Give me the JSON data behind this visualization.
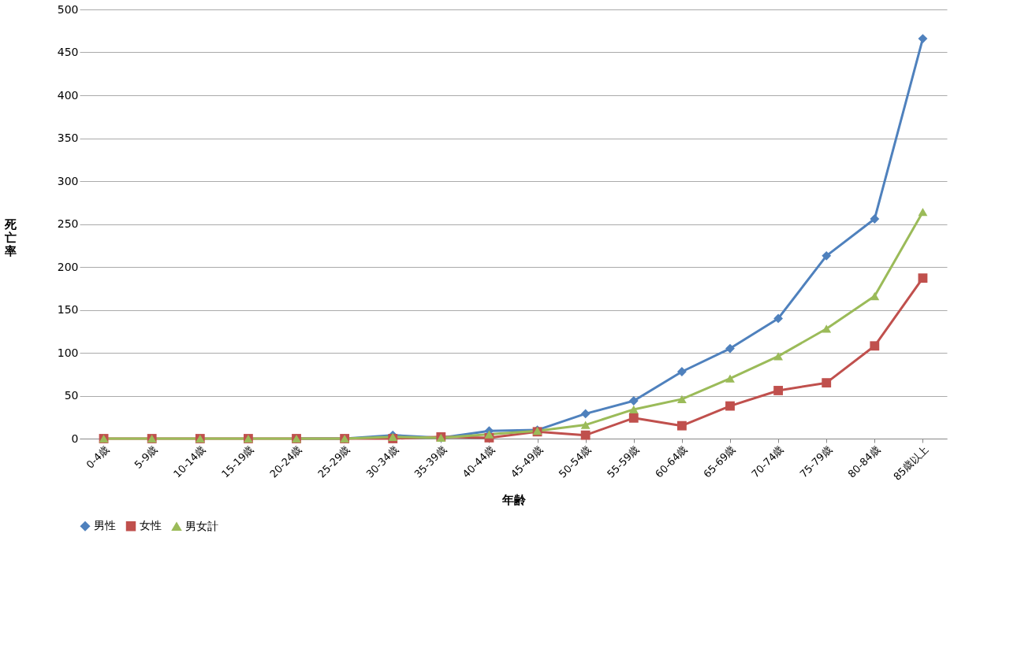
{
  "chart_data": {
    "type": "line",
    "xlabel": "年齢",
    "ylabel": "死亡率",
    "categories": [
      "0-4歳",
      "5-9歳",
      "10-14歳",
      "15-19歳",
      "20-24歳",
      "25-29歳",
      "30-34歳",
      "35-39歳",
      "40-44歳",
      "45-49歳",
      "50-54歳",
      "55-59歳",
      "60-64歳",
      "65-69歳",
      "70-74歳",
      "75-79歳",
      "80-84歳",
      "85歳以上"
    ],
    "series": [
      {
        "name": "男性",
        "color": "#4f81bd",
        "marker": "diamond",
        "values": [
          null,
          null,
          null,
          null,
          0,
          0,
          4,
          1,
          9,
          10,
          29,
          44,
          78,
          105,
          140,
          213,
          256,
          466
        ]
      },
      {
        "name": "女性",
        "color": "#c0504d",
        "marker": "square",
        "values": [
          0,
          0,
          0,
          0,
          0,
          0,
          0,
          2,
          1,
          8,
          4,
          24,
          15,
          38,
          56,
          65,
          108,
          187
        ]
      },
      {
        "name": "男女計",
        "color": "#9bbb59",
        "marker": "triangle",
        "values": [
          0,
          0,
          0,
          0,
          0,
          0,
          2,
          1,
          5,
          9,
          16,
          34,
          46,
          70,
          96,
          128,
          166,
          264
        ]
      }
    ],
    "ylim": [
      0,
      500
    ],
    "yticks": [
      0,
      50,
      100,
      150,
      200,
      250,
      300,
      350,
      400,
      450,
      500
    ],
    "grid": "y",
    "legend": "bottom",
    "line_style": "solid"
  }
}
